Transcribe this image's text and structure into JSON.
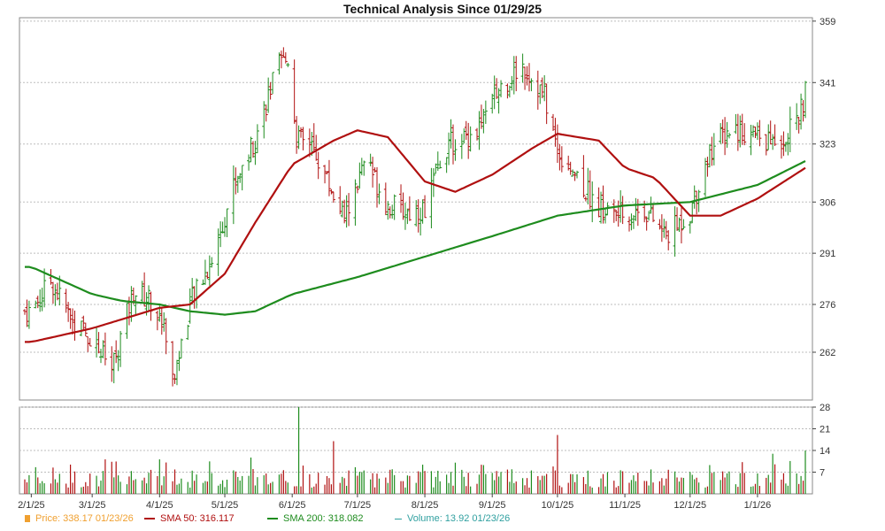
{
  "chart_data": {
    "type": "ohlc",
    "title": "Technical Analysis Since 01/29/25",
    "price_axis": {
      "ticks": [
        262,
        276,
        291,
        306,
        323,
        341,
        359
      ],
      "ylim": [
        248,
        360
      ]
    },
    "volume_axis": {
      "ticks": [
        7,
        14,
        21,
        28
      ],
      "ylim": [
        0,
        28
      ]
    },
    "x_ticks": [
      "2/1/25",
      "3/1/25",
      "4/1/25",
      "5/1/25",
      "6/1/25",
      "7/1/25",
      "8/1/25",
      "9/1/25",
      "10/1/25",
      "11/1/25",
      "12/1/25",
      "1/1/26"
    ],
    "price_anchors": [
      [
        "2/1/25",
        274
      ],
      [
        "2/10/25",
        283
      ],
      [
        "2/20/25",
        271
      ],
      [
        "3/1/25",
        266
      ],
      [
        "3/10/25",
        257
      ],
      [
        "3/20/25",
        280
      ],
      [
        "3/28/25",
        277
      ],
      [
        "4/4/25",
        268
      ],
      [
        "4/7/25",
        253
      ],
      [
        "4/15/25",
        276
      ],
      [
        "4/25/25",
        289
      ],
      [
        "5/5/25",
        311
      ],
      [
        "5/15/25",
        325
      ],
      [
        "5/25/25",
        345
      ],
      [
        "5/30/25",
        348
      ],
      [
        "6/3/25",
        325
      ],
      [
        "6/12/25",
        320
      ],
      [
        "6/25/25",
        301
      ],
      [
        "7/5/25",
        318
      ],
      [
        "7/15/25",
        305
      ],
      [
        "7/25/25",
        303
      ],
      [
        "8/1/25",
        304
      ],
      [
        "8/10/25",
        322
      ],
      [
        "8/25/25",
        327
      ],
      [
        "9/5/25",
        340
      ],
      [
        "9/15/25",
        346
      ],
      [
        "9/25/25",
        337
      ],
      [
        "10/1/25",
        321
      ],
      [
        "10/10/25",
        314
      ],
      [
        "10/20/25",
        304
      ],
      [
        "11/1/25",
        302
      ],
      [
        "11/10/25",
        304
      ],
      [
        "11/20/25",
        296
      ],
      [
        "12/1/25",
        303
      ],
      [
        "12/10/25",
        321
      ],
      [
        "12/20/25",
        328
      ],
      [
        "1/1/26",
        325
      ],
      [
        "1/10/26",
        323
      ],
      [
        "1/20/26",
        330
      ],
      [
        "1/23/26",
        338
      ]
    ],
    "sma50_anchors": [
      [
        "2/1/25",
        265
      ],
      [
        "3/1/25",
        269
      ],
      [
        "4/1/25",
        275
      ],
      [
        "4/15/25",
        276
      ],
      [
        "5/1/25",
        285
      ],
      [
        "5/15/25",
        300
      ],
      [
        "6/1/25",
        317
      ],
      [
        "6/20/25",
        324
      ],
      [
        "7/1/25",
        327
      ],
      [
        "7/15/25",
        325
      ],
      [
        "8/1/25",
        312
      ],
      [
        "8/15/25",
        309
      ],
      [
        "9/1/25",
        314
      ],
      [
        "9/20/25",
        322
      ],
      [
        "10/1/25",
        326
      ],
      [
        "10/20/25",
        324
      ],
      [
        "11/1/25",
        316
      ],
      [
        "11/15/25",
        313
      ],
      [
        "12/1/25",
        302
      ],
      [
        "12/15/25",
        302
      ],
      [
        "1/1/26",
        307
      ],
      [
        "1/23/26",
        316
      ]
    ],
    "sma200_anchors": [
      [
        "2/1/25",
        287
      ],
      [
        "2/15/25",
        283
      ],
      [
        "3/1/25",
        279
      ],
      [
        "3/15/25",
        277
      ],
      [
        "4/1/25",
        276
      ],
      [
        "4/15/25",
        274
      ],
      [
        "5/1/25",
        273
      ],
      [
        "5/15/25",
        274
      ],
      [
        "6/1/25",
        279
      ],
      [
        "7/1/25",
        284
      ],
      [
        "8/1/25",
        290
      ],
      [
        "9/1/25",
        296
      ],
      [
        "10/1/25",
        302
      ],
      [
        "11/1/25",
        305
      ],
      [
        "12/1/25",
        306
      ],
      [
        "1/1/26",
        311
      ],
      [
        "1/23/26",
        318
      ]
    ],
    "volume_peaks": [
      [
        "6/4/25",
        28
      ],
      [
        "10/1/25",
        19
      ],
      [
        "6/20/25",
        17
      ],
      [
        "1/23/26",
        14
      ]
    ],
    "end_date": "1/23/26",
    "colors": {
      "price": "#f0a030",
      "bar_up": "#1e8c1e",
      "bar_down": "#b01010",
      "sma50": "#b01010",
      "sma200": "#1e8c1e",
      "volume": "#30a0a0",
      "grid": "#bdbdbd"
    }
  },
  "legend": {
    "price": "Price: 338.17  01/23/26",
    "sma50": "SMA 50: 316.117",
    "sma200": "SMA 200: 318.082",
    "volume": "Volume: 13.92  01/23/26"
  }
}
